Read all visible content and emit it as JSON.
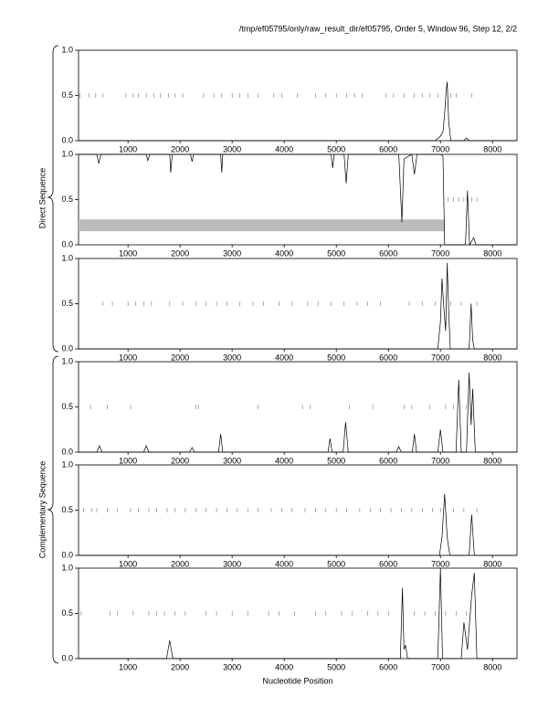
{
  "title": "/tmp/ef05795/only/raw_result_dir/ef05795, Order 5, Window 96, Step 12, 2/2",
  "x_label": "Nucleotide Position",
  "groups": [
    "Direct Sequence",
    "Complementary Sequence"
  ],
  "chart_data": [
    {
      "type": "line",
      "color": "#000000",
      "xlim": [
        50,
        8470
      ],
      "ylim": [
        0,
        1
      ],
      "xticks": [
        1000,
        2000,
        3000,
        4000,
        5000,
        6000,
        7000,
        8000
      ],
      "yticks": [
        {
          "value": 0,
          "label": "0.0"
        },
        {
          "value": 0.5,
          "label": "0.5"
        },
        {
          "value": 1,
          "label": "1.0"
        }
      ],
      "x": [
        50,
        6900,
        7000,
        7050,
        7080,
        7110,
        7130,
        7160,
        7200,
        7450,
        7500,
        7550,
        8470
      ],
      "values": [
        0,
        0,
        0.05,
        0.1,
        0.3,
        0.55,
        0.65,
        0.2,
        0,
        0,
        0.03,
        0,
        0
      ],
      "orf_marks": [
        80,
        250,
        380,
        520,
        960,
        1100,
        1200,
        1350,
        1500,
        1620,
        1780,
        1900,
        2050,
        2450,
        2650,
        2800,
        3000,
        3150,
        3300,
        3500,
        3800,
        3950,
        4250,
        4600,
        4800,
        5000,
        5200,
        5350,
        5500,
        5950,
        6100,
        6300,
        6500,
        6650,
        6800,
        6950,
        7200,
        7300,
        7600
      ]
    },
    {
      "type": "line",
      "color": "#000000",
      "xlim": [
        50,
        8470
      ],
      "ylim": [
        0,
        1
      ],
      "xticks": [
        1000,
        2000,
        3000,
        4000,
        5000,
        6000,
        7000,
        8000
      ],
      "yticks": [
        {
          "value": 0,
          "label": "0.0"
        },
        {
          "value": 0.5,
          "label": "0.5"
        },
        {
          "value": 1,
          "label": "1.0"
        }
      ],
      "x": [
        50,
        400,
        440,
        480,
        1350,
        1380,
        1420,
        1800,
        1820,
        1850,
        2200,
        2230,
        2260,
        2780,
        2800,
        2820,
        4900,
        4930,
        4960,
        5150,
        5190,
        5230,
        6200,
        6260,
        6300,
        6450,
        6500,
        6550,
        7000,
        7050,
        7080,
        7100,
        7480,
        7520,
        7560,
        7640,
        7680,
        8470
      ],
      "values": [
        1,
        1,
        0.9,
        1,
        1,
        0.93,
        1,
        1,
        0.8,
        1,
        1,
        0.92,
        1,
        1,
        0.8,
        1,
        1,
        0.85,
        1,
        1,
        0.68,
        1,
        1,
        0.25,
        0.95,
        1,
        0.78,
        1,
        1,
        0.98,
        0,
        0,
        0,
        0.6,
        0,
        0.08,
        0,
        0
      ],
      "regions": [
        {
          "start": 50,
          "end": 7080,
          "low": 0.15,
          "high": 0.28
        }
      ],
      "orf_marks": [
        7150,
        7250,
        7350,
        7450,
        7600,
        7700
      ]
    },
    {
      "type": "line",
      "color": "#000000",
      "xlim": [
        50,
        8470
      ],
      "ylim": [
        0,
        1
      ],
      "xticks": [
        1000,
        2000,
        3000,
        4000,
        5000,
        6000,
        7000,
        8000
      ],
      "yticks": [
        {
          "value": 0,
          "label": "0.0"
        },
        {
          "value": 0.5,
          "label": "0.5"
        },
        {
          "value": 1,
          "label": "1.0"
        }
      ],
      "x": [
        50,
        6950,
        7000,
        7030,
        7060,
        7100,
        7130,
        7160,
        7190,
        7550,
        7590,
        7620,
        7650,
        8470
      ],
      "values": [
        0,
        0,
        0.3,
        0.78,
        0.5,
        0.2,
        0.95,
        0.4,
        0,
        0,
        0.5,
        0.1,
        0,
        0
      ],
      "orf_marks": [
        520,
        700,
        1000,
        1150,
        1300,
        1450,
        1800,
        2050,
        2300,
        2500,
        2700,
        2900,
        3150,
        3400,
        3600,
        3900,
        4150,
        4450,
        4650,
        4900,
        5150,
        5400,
        5600,
        5850,
        6400,
        6650,
        6900,
        7200,
        7400,
        7700
      ]
    },
    {
      "type": "line",
      "color": "#000000",
      "xlim": [
        50,
        8470
      ],
      "ylim": [
        0,
        1
      ],
      "xticks": [
        1000,
        2000,
        3000,
        4000,
        5000,
        6000,
        7000,
        8000
      ],
      "yticks": [
        {
          "value": 0,
          "label": "0.0"
        },
        {
          "value": 0.5,
          "label": "0.5"
        },
        {
          "value": 1,
          "label": "1.0"
        }
      ],
      "x": [
        50,
        400,
        450,
        500,
        1300,
        1350,
        1400,
        2180,
        2230,
        2280,
        2740,
        2780,
        2820,
        4840,
        4880,
        4920,
        5130,
        5180,
        5230,
        6150,
        6200,
        6250,
        6460,
        6500,
        6540,
        6950,
        7000,
        7050,
        7300,
        7350,
        7400,
        7500,
        7550,
        7590,
        7620,
        7670,
        8470
      ],
      "values": [
        0,
        0,
        0.07,
        0,
        0,
        0.07,
        0,
        0,
        0.05,
        0,
        0,
        0.2,
        0,
        0,
        0.15,
        0,
        0,
        0.33,
        0,
        0,
        0.06,
        0,
        0,
        0.2,
        0,
        0,
        0.25,
        0,
        0,
        0.8,
        0,
        0,
        0.88,
        0.3,
        0.7,
        0,
        0
      ],
      "orf_marks": [
        280,
        600,
        1050,
        2300,
        2350,
        3500,
        4350,
        4500,
        5250,
        5700,
        6300,
        6450,
        6800,
        7100,
        7250,
        7500
      ]
    },
    {
      "type": "line",
      "color": "#000000",
      "xlim": [
        50,
        8470
      ],
      "ylim": [
        0,
        1
      ],
      "xticks": [
        1000,
        2000,
        3000,
        4000,
        5000,
        6000,
        7000,
        8000
      ],
      "yticks": [
        {
          "value": 0,
          "label": "0.0"
        },
        {
          "value": 0.5,
          "label": "0.5"
        },
        {
          "value": 1,
          "label": "1.0"
        }
      ],
      "x": [
        50,
        6980,
        7030,
        7080,
        7130,
        7180,
        7550,
        7600,
        7650,
        8470
      ],
      "values": [
        0,
        0,
        0.2,
        0.68,
        0.2,
        0,
        0,
        0.45,
        0,
        0
      ],
      "orf_marks": [
        150,
        300,
        400,
        600,
        800,
        1050,
        1200,
        1400,
        1550,
        1750,
        1900,
        2100,
        2300,
        2500,
        2700,
        2900,
        3100,
        3300,
        3500,
        3750,
        3950,
        4150,
        4400,
        4600,
        4800,
        5000,
        5200,
        5450,
        5650,
        5850,
        6050,
        6250,
        6450,
        6650,
        6850,
        7000,
        7250,
        7450,
        7700
      ]
    },
    {
      "type": "line",
      "color": "#000000",
      "xlim": [
        50,
        8470
      ],
      "ylim": [
        0,
        1
      ],
      "xticks": [
        1000,
        2000,
        3000,
        4000,
        5000,
        6000,
        7000,
        8000
      ],
      "yticks": [
        {
          "value": 0,
          "label": "0.0"
        },
        {
          "value": 0.5,
          "label": "0.5"
        },
        {
          "value": 1,
          "label": "1.0"
        }
      ],
      "x": [
        50,
        1740,
        1800,
        1860,
        6230,
        6270,
        6300,
        6330,
        6370,
        6950,
        7000,
        7040,
        7400,
        7450,
        7520,
        7600,
        7650,
        7700,
        8470
      ],
      "values": [
        0,
        0,
        0.2,
        0,
        0,
        0.78,
        0.1,
        0.15,
        0,
        0,
        1,
        0,
        0,
        0.4,
        0.1,
        0.7,
        0.95,
        0,
        0
      ],
      "orf_marks": [
        100,
        650,
        800,
        1100,
        1400,
        1550,
        1700,
        1900,
        2100,
        2500,
        2700,
        3000,
        3300,
        3700,
        3900,
        4200,
        4600,
        4800,
        5100,
        5300,
        5600,
        5800,
        6000,
        6500,
        6700,
        6900,
        7100,
        7300,
        7500
      ]
    }
  ]
}
